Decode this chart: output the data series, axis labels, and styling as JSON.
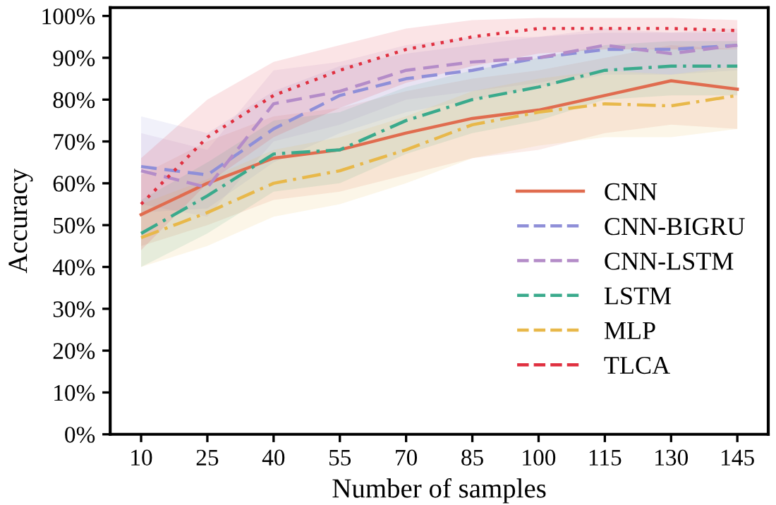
{
  "chart_data": {
    "type": "line",
    "xlabel": "Number of samples",
    "ylabel": "Accuracy",
    "x": [
      10,
      25,
      40,
      55,
      70,
      85,
      100,
      115,
      130,
      145
    ],
    "xlim": [
      3,
      152
    ],
    "xticks": [
      10,
      25,
      40,
      55,
      70,
      85,
      100,
      115,
      130,
      145
    ],
    "ylim": [
      0,
      102
    ],
    "yticks": [
      {
        "value": 0,
        "label": "0%"
      },
      {
        "value": 10,
        "label": "10%"
      },
      {
        "value": 20,
        "label": "20%"
      },
      {
        "value": 30,
        "label": "30%"
      },
      {
        "value": 40,
        "label": "40%"
      },
      {
        "value": 50,
        "label": "50%"
      },
      {
        "value": 60,
        "label": "60%"
      },
      {
        "value": 70,
        "label": "70%"
      },
      {
        "value": 80,
        "label": "80%"
      },
      {
        "value": 90,
        "label": "90%"
      },
      {
        "value": 100,
        "label": "100%"
      }
    ],
    "grid": false,
    "legend": "right",
    "marker": "none",
    "series": [
      {
        "name": "CNN",
        "color": "#e06c4f",
        "line_style": "solid",
        "values": [
          52.5,
          60,
          66,
          68,
          72,
          75.5,
          77.5,
          81,
          84.5,
          82.5
        ],
        "lower": [
          45,
          50,
          56,
          58,
          62,
          66,
          68,
          72,
          74,
          73
        ],
        "upper": [
          62,
          70,
          76,
          78,
          82,
          85,
          87,
          90,
          93,
          92
        ]
      },
      {
        "name": "CNN-BIGRU",
        "color": "#8f8fd8",
        "line_style": "dashed",
        "values": [
          64,
          62,
          73,
          81,
          85,
          87,
          90,
          92,
          92,
          93
        ],
        "lower": [
          53,
          54,
          65,
          72,
          77,
          80,
          83,
          86,
          86,
          87
        ],
        "upper": [
          76,
          72,
          82,
          88,
          91,
          93,
          95,
          96,
          96,
          96
        ]
      },
      {
        "name": "CNN-LSTM",
        "color": "#b48cc8",
        "line_style": "dashed",
        "values": [
          63,
          59,
          79,
          82,
          87,
          89,
          90,
          93,
          91,
          93
        ],
        "lower": [
          55,
          52,
          70,
          74,
          80,
          82,
          84,
          87,
          86,
          88
        ],
        "upper": [
          72,
          68,
          87,
          89,
          93,
          95,
          95,
          97,
          96,
          97
        ]
      },
      {
        "name": "LSTM",
        "color": "#3aaa8c",
        "line_style": "dashdot",
        "values": [
          48,
          57,
          67,
          68,
          75,
          80,
          83,
          87,
          88,
          88
        ],
        "lower": [
          40,
          48,
          58,
          60,
          67,
          72,
          75,
          80,
          81,
          81
        ],
        "upper": [
          56,
          65,
          75,
          77,
          83,
          87,
          90,
          93,
          94,
          94
        ]
      },
      {
        "name": "MLP",
        "color": "#e8b84a",
        "line_style": "dashdot",
        "values": [
          47,
          53,
          60,
          63,
          68,
          74,
          77,
          79,
          78.5,
          81
        ],
        "lower": [
          40,
          45,
          52,
          55,
          60,
          66,
          69,
          71,
          71,
          73
        ],
        "upper": [
          55,
          61,
          68,
          71,
          76,
          82,
          85,
          87,
          86,
          88
        ]
      },
      {
        "name": "TLCA",
        "color": "#e03040",
        "line_style": "dotted",
        "values": [
          55,
          71,
          81,
          87,
          92,
          95,
          97,
          97,
          97,
          96.5
        ],
        "lower": [
          44,
          60,
          71,
          78,
          84,
          88,
          91,
          92,
          92,
          92
        ],
        "upper": [
          66,
          80,
          89,
          93,
          97,
          99,
          99.5,
          99.5,
          99.5,
          99
        ]
      }
    ]
  }
}
